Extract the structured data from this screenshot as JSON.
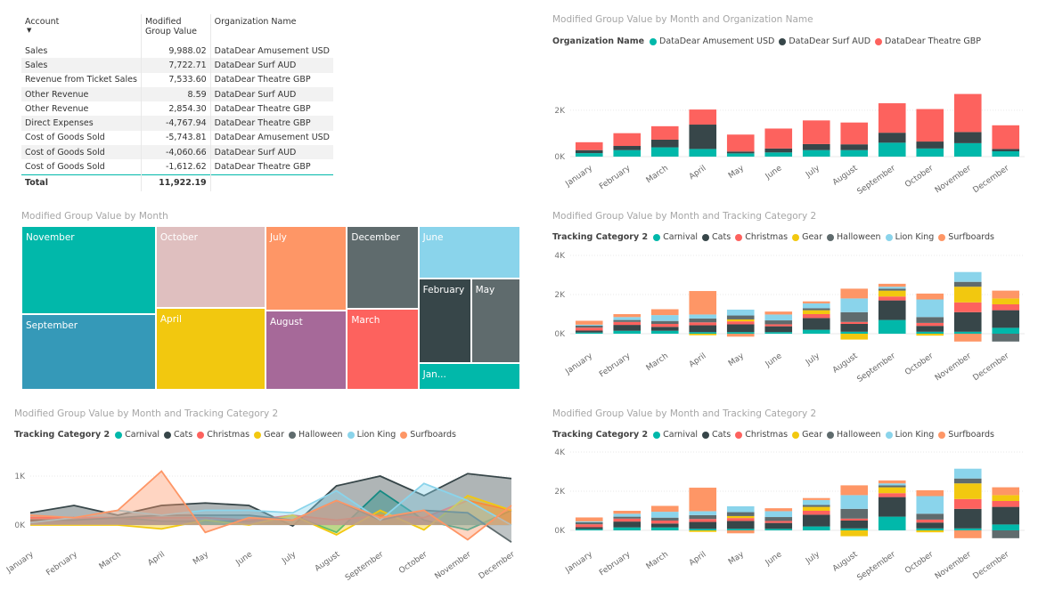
{
  "table": {
    "headers": [
      "Account",
      "Modified Group Value",
      "Organization Name"
    ],
    "rows": [
      [
        "Sales",
        "9,988.02",
        "DataDear Amusement USD"
      ],
      [
        "Sales",
        "7,722.71",
        "DataDear Surf AUD"
      ],
      [
        "Revenue from Ticket Sales",
        "7,533.60",
        "DataDear Theatre GBP"
      ],
      [
        "Other Revenue",
        "8.59",
        "DataDear Surf AUD"
      ],
      [
        "Other Revenue",
        "2,854.30",
        "DataDear Theatre GBP"
      ],
      [
        "Direct Expenses",
        "-4,767.94",
        "DataDear Theatre GBP"
      ],
      [
        "Cost of Goods Sold",
        "-5,743.81",
        "DataDear Amusement USD"
      ],
      [
        "Cost of Goods Sold",
        "-4,060.66",
        "DataDear Surf AUD"
      ],
      [
        "Cost of Goods Sold",
        "-1,612.62",
        "DataDear Theatre GBP"
      ]
    ],
    "total": [
      "Total",
      "11,922.19",
      ""
    ]
  },
  "colors": {
    "teal": "#01b8aa",
    "dark": "#374649",
    "red": "#fd625e",
    "yellow": "#f2c80f",
    "gray": "#5f6b6d",
    "lightblue": "#8ad4eb",
    "orange": "#fe9666",
    "purple": "#a66999",
    "pink": "#dfbfbf",
    "blue": "#3599b8"
  },
  "months": [
    "January",
    "February",
    "March",
    "April",
    "May",
    "June",
    "July",
    "August",
    "September",
    "October",
    "November",
    "December"
  ],
  "chart_data": [
    {
      "id": "org",
      "type": "bar",
      "stacked": true,
      "title": "Modified Group Value by Month and Organization Name",
      "legend_title": "Organization Name",
      "yticks": [
        "0K",
        "2K"
      ],
      "ylim": [
        0,
        2800
      ],
      "categories": [
        "January",
        "February",
        "March",
        "April",
        "May",
        "June",
        "July",
        "August",
        "September",
        "October",
        "November",
        "December"
      ],
      "series": [
        {
          "name": "DataDear Amusement USD",
          "color": "#01b8aa",
          "values": [
            150,
            280,
            400,
            330,
            140,
            180,
            280,
            280,
            600,
            350,
            580,
            230
          ]
        },
        {
          "name": "DataDear Surf AUD",
          "color": "#374649",
          "values": [
            130,
            180,
            330,
            1050,
            80,
            170,
            260,
            250,
            430,
            300,
            480,
            100
          ]
        },
        {
          "name": "DataDear Theatre GBP",
          "color": "#fd625e",
          "values": [
            340,
            550,
            580,
            650,
            730,
            860,
            1020,
            940,
            1270,
            1400,
            1640,
            1020
          ]
        }
      ]
    },
    {
      "id": "treemap",
      "type": "treemap",
      "title": "Modified Group Value by Month",
      "items": [
        {
          "label": "November",
          "value": 2700,
          "color": "#01b8aa"
        },
        {
          "label": "September",
          "value": 2300,
          "color": "#3599b8"
        },
        {
          "label": "October",
          "value": 2050,
          "color": "#dfbfbf"
        },
        {
          "label": "April",
          "value": 2030,
          "color": "#f2c80f"
        },
        {
          "label": "July",
          "value": 1560,
          "color": "#fe9666"
        },
        {
          "label": "August",
          "value": 1470,
          "color": "#a66999"
        },
        {
          "label": "December",
          "value": 1350,
          "color": "#5f6b6d"
        },
        {
          "label": "March",
          "value": 1310,
          "color": "#fd625e"
        },
        {
          "label": "June",
          "value": 1210,
          "color": "#8ad4eb"
        },
        {
          "label": "February",
          "value": 1010,
          "color": "#374649"
        },
        {
          "label": "May",
          "value": 950,
          "color": "#5f6b6d"
        },
        {
          "label": "Jan...",
          "value": 620,
          "color": "#01b8aa"
        }
      ]
    },
    {
      "id": "track1",
      "type": "bar",
      "stacked": true,
      "title": "Modified Group Value by Month and Tracking Category 2",
      "legend_title": "Tracking Category 2",
      "yticks": [
        "0K",
        "2K",
        "4K"
      ],
      "ylim": [
        -800,
        4000
      ],
      "categories": [
        "January",
        "February",
        "March",
        "April",
        "May",
        "June",
        "July",
        "August",
        "September",
        "October",
        "November",
        "December"
      ],
      "series": [
        {
          "name": "Carnival",
          "color": "#01b8aa",
          "values": [
            60,
            150,
            150,
            80,
            80,
            80,
            200,
            100,
            700,
            100,
            100,
            300
          ]
        },
        {
          "name": "Cats",
          "color": "#374649",
          "values": [
            100,
            300,
            200,
            350,
            400,
            300,
            600,
            400,
            1000,
            300,
            1000,
            900
          ]
        },
        {
          "name": "Christmas",
          "color": "#fd625e",
          "values": [
            150,
            150,
            150,
            150,
            150,
            100,
            200,
            100,
            200,
            150,
            500,
            300
          ]
        },
        {
          "name": "Gear",
          "color": "#f2c80f",
          "values": [
            0,
            0,
            0,
            -80,
            100,
            0,
            200,
            -300,
            300,
            -100,
            800,
            300
          ]
        },
        {
          "name": "Halloween",
          "color": "#5f6b6d",
          "values": [
            100,
            100,
            150,
            200,
            200,
            200,
            100,
            500,
            100,
            300,
            250,
            -400
          ]
        },
        {
          "name": "Lion King",
          "color": "#8ad4eb",
          "values": [
            50,
            150,
            300,
            200,
            300,
            300,
            250,
            700,
            100,
            900,
            500,
            0
          ]
        },
        {
          "name": "Surfboards",
          "color": "#fe9666",
          "values": [
            200,
            150,
            300,
            1200,
            -150,
            150,
            100,
            500,
            150,
            300,
            -400,
            400
          ]
        }
      ]
    },
    {
      "id": "area",
      "type": "area",
      "title": "Modified Group Value by Month and Tracking Category 2",
      "legend_title": "Tracking Category 2",
      "yticks": [
        "0K",
        "1K"
      ],
      "ylim": [
        -500,
        1400
      ],
      "categories": [
        "January",
        "February",
        "March",
        "April",
        "May",
        "June",
        "July",
        "August",
        "September",
        "October",
        "November",
        "December"
      ],
      "series": [
        {
          "name": "Carnival",
          "color": "#01b8aa",
          "values": [
            60,
            150,
            150,
            80,
            80,
            80,
            200,
            -150,
            700,
            100,
            -100,
            300
          ]
        },
        {
          "name": "Cats",
          "color": "#374649",
          "values": [
            250,
            400,
            200,
            400,
            450,
            400,
            -20,
            800,
            1000,
            600,
            1050,
            950
          ]
        },
        {
          "name": "Christmas",
          "color": "#fd625e",
          "values": [
            150,
            150,
            150,
            150,
            150,
            100,
            200,
            100,
            200,
            150,
            500,
            300
          ]
        },
        {
          "name": "Gear",
          "color": "#f2c80f",
          "values": [
            0,
            0,
            0,
            -80,
            100,
            0,
            200,
            -200,
            300,
            -100,
            600,
            300
          ]
        },
        {
          "name": "Halloween",
          "color": "#5f6b6d",
          "values": [
            100,
            100,
            150,
            200,
            200,
            200,
            100,
            500,
            100,
            300,
            250,
            -350
          ]
        },
        {
          "name": "Lion King",
          "color": "#8ad4eb",
          "values": [
            50,
            150,
            300,
            200,
            300,
            300,
            250,
            700,
            100,
            850,
            500,
            0
          ]
        },
        {
          "name": "Surfboards",
          "color": "#fe9666",
          "values": [
            200,
            150,
            300,
            1100,
            -150,
            150,
            100,
            500,
            150,
            300,
            -300,
            400
          ]
        }
      ]
    },
    {
      "id": "track2",
      "type": "bar",
      "stacked": true,
      "title": "Modified Group Value by Month and Tracking Category 2",
      "legend_title": "Tracking Category 2",
      "yticks": [
        "0K",
        "2K",
        "4K"
      ],
      "ylim": [
        -800,
        4000
      ],
      "categories": [
        "January",
        "February",
        "March",
        "April",
        "May",
        "June",
        "July",
        "August",
        "September",
        "October",
        "November",
        "December"
      ],
      "series": [
        {
          "name": "Carnival",
          "color": "#01b8aa",
          "values": [
            60,
            150,
            150,
            80,
            80,
            80,
            200,
            100,
            700,
            100,
            100,
            300
          ]
        },
        {
          "name": "Cats",
          "color": "#374649",
          "values": [
            100,
            300,
            200,
            350,
            400,
            300,
            600,
            400,
            1000,
            300,
            1000,
            900
          ]
        },
        {
          "name": "Christmas",
          "color": "#fd625e",
          "values": [
            150,
            150,
            150,
            150,
            150,
            100,
            200,
            100,
            200,
            150,
            500,
            300
          ]
        },
        {
          "name": "Gear",
          "color": "#f2c80f",
          "values": [
            0,
            0,
            0,
            -80,
            100,
            0,
            200,
            -300,
            300,
            -100,
            800,
            300
          ]
        },
        {
          "name": "Halloween",
          "color": "#5f6b6d",
          "values": [
            100,
            100,
            150,
            200,
            200,
            200,
            100,
            500,
            100,
            300,
            250,
            -400
          ]
        },
        {
          "name": "Lion King",
          "color": "#8ad4eb",
          "values": [
            50,
            150,
            300,
            200,
            300,
            300,
            250,
            700,
            100,
            900,
            500,
            0
          ]
        },
        {
          "name": "Surfboards",
          "color": "#fe9666",
          "values": [
            200,
            150,
            300,
            1200,
            -150,
            150,
            100,
            500,
            150,
            300,
            -400,
            400
          ]
        }
      ]
    }
  ]
}
